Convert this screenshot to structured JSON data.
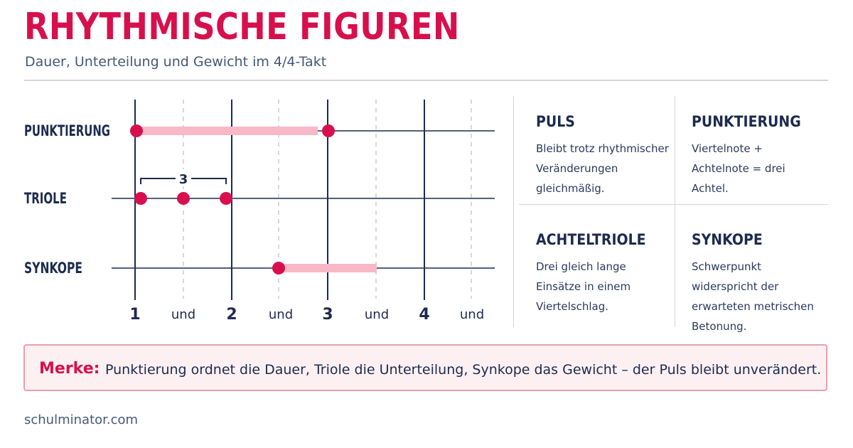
{
  "header": {
    "title": "RHYTHMISCHE FIGUREN",
    "subtitle": "Dauer, Unterteilung und Gewicht im 4/4-Takt"
  },
  "diagram": {
    "rows": [
      "PUNKTIERUNG",
      "TRIOLE",
      "SYNKOPE"
    ],
    "beats": [
      "1",
      "und",
      "2",
      "und",
      "3",
      "und",
      "4",
      "und"
    ],
    "triplet_bracket_label": "3",
    "colors": {
      "navy": "#1c2b4f",
      "accent": "#d7104d",
      "bar": "#f7b8c8",
      "dashed": "#c9ccd2"
    }
  },
  "cards": [
    {
      "title": "PULS",
      "text": "Bleibt trotz rhythmischer Veränderungen gleichmäßig."
    },
    {
      "title": "PUNKTIERUNG",
      "text": "Viertelnote + Achtelnote = drei Achtel."
    },
    {
      "title": "ACHTELTRIOLE",
      "text": "Drei gleich lange Einsätze in einem Viertelschlag."
    },
    {
      "title": "SYNKOPE",
      "text": "Schwerpunkt widerspricht der erwarteten metrischen Betonung."
    }
  ],
  "merke": {
    "label": "Merke:",
    "text": "Punktierung ordnet die Dauer, Triole die Unterteilung, Synkope das Gewicht – der Puls bleibt unverändert."
  },
  "footer": {
    "source": "schulminator.com"
  }
}
